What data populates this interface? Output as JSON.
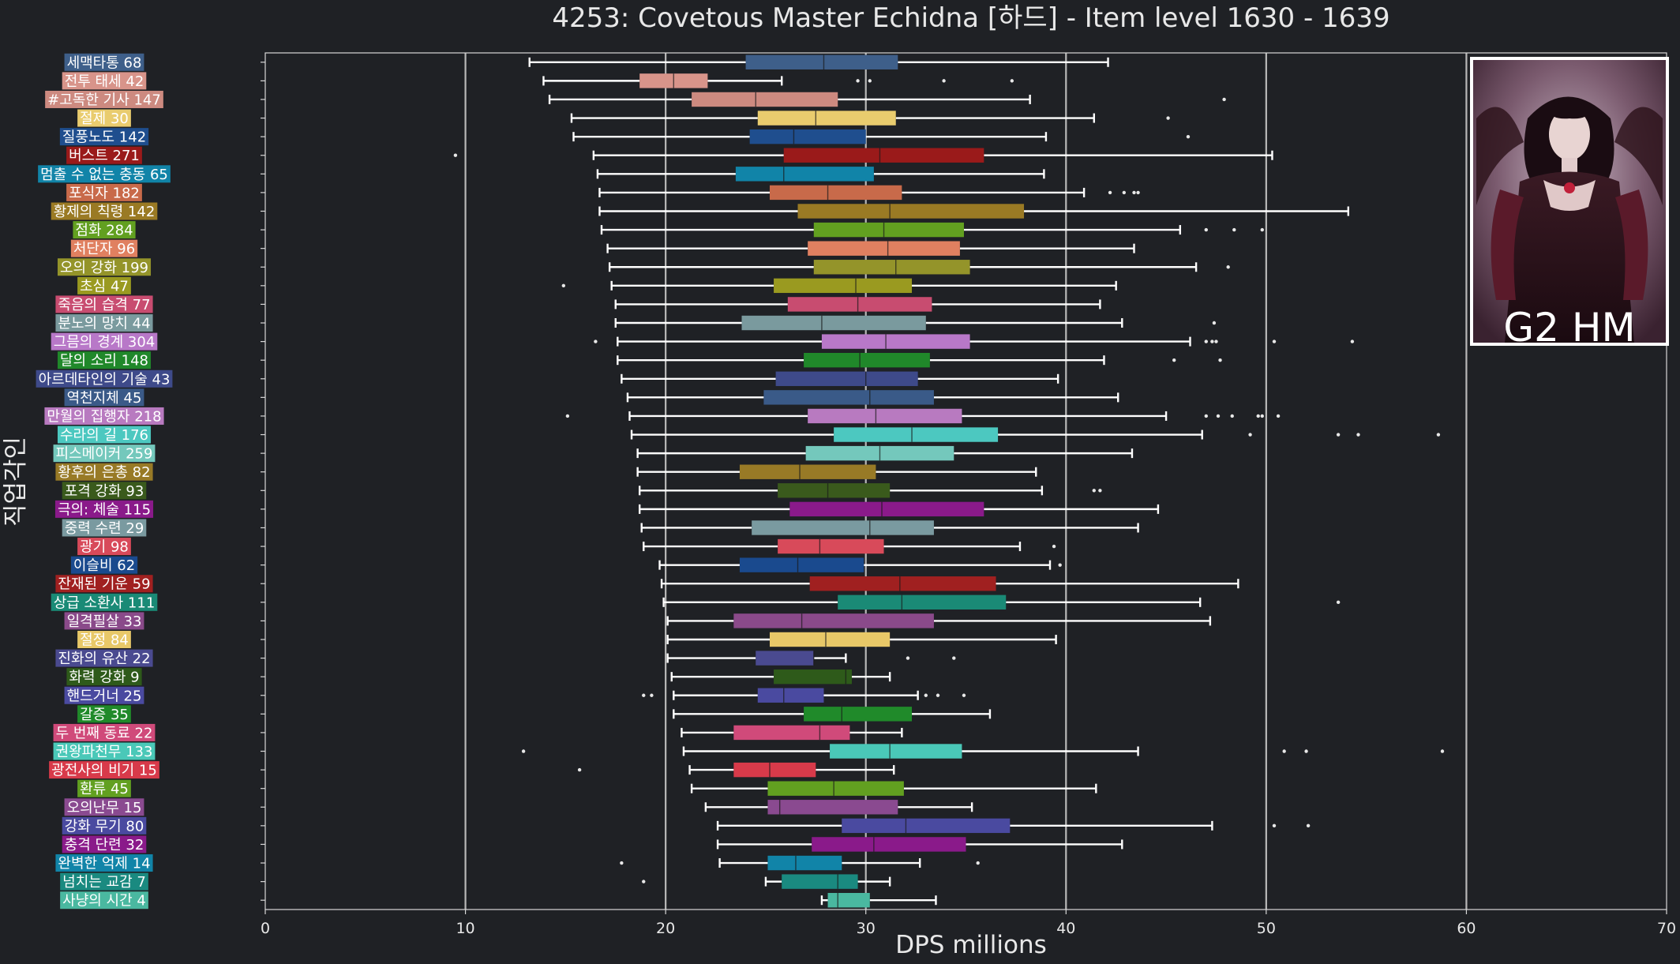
{
  "chart_data": {
    "type": "box",
    "title": "4253: Covetous Master Echidna [하드] - Item level 1630 - 1639",
    "xlabel": "DPS millions",
    "ylabel": "직업각인",
    "xlim": [
      0,
      70
    ],
    "xticks": [
      0,
      10,
      20,
      30,
      40,
      50,
      60,
      70
    ],
    "grid": "vertical",
    "badge_text": "G2 HM",
    "badge_image": "echidna-portrait",
    "categories": [
      {
        "label": "세맥타통 68",
        "color": "#3e5f8a",
        "whislo": 13.2,
        "q1": 24.0,
        "med": 27.9,
        "q3": 31.6,
        "whishi": 42.1,
        "fliers": []
      },
      {
        "label": "전투 태세 42",
        "color": "#d8948a",
        "whislo": 13.9,
        "q1": 18.7,
        "med": 20.4,
        "q3": 22.1,
        "whishi": 25.8,
        "fliers": [
          29.6,
          30.2,
          33.9,
          37.3
        ]
      },
      {
        "label": "#고독한 기사 147",
        "color": "#cd8a80",
        "whislo": 14.2,
        "q1": 21.3,
        "med": 24.5,
        "q3": 28.6,
        "whishi": 38.2,
        "fliers": [
          47.9
        ]
      },
      {
        "label": "절제 30",
        "color": "#e9cc6e",
        "whislo": 15.3,
        "q1": 24.6,
        "med": 27.5,
        "q3": 31.5,
        "whishi": 41.4,
        "fliers": [
          45.1
        ]
      },
      {
        "label": "질풍노도 142",
        "color": "#1f4e8e",
        "whislo": 15.4,
        "q1": 24.2,
        "med": 26.4,
        "q3": 30.0,
        "whishi": 39.0,
        "fliers": [
          46.1
        ]
      },
      {
        "label": "버스트 271",
        "color": "#9a1a1a",
        "whislo": 16.4,
        "q1": 25.9,
        "med": 30.7,
        "q3": 35.9,
        "whishi": 50.3,
        "fliers": [
          9.5
        ]
      },
      {
        "label": "멈출 수 없는 충동 65",
        "color": "#1184a8",
        "whislo": 16.6,
        "q1": 23.5,
        "med": 25.9,
        "q3": 30.4,
        "whishi": 38.9,
        "fliers": []
      },
      {
        "label": "포식자 182",
        "color": "#c86a4a",
        "whislo": 16.7,
        "q1": 25.2,
        "med": 28.1,
        "q3": 31.8,
        "whishi": 40.9,
        "fliers": [
          42.2,
          42.9,
          43.4,
          43.6
        ]
      },
      {
        "label": "황제의 칙령 142",
        "color": "#9a7a24",
        "whislo": 16.7,
        "q1": 26.6,
        "med": 31.2,
        "q3": 37.9,
        "whishi": 54.1,
        "fliers": []
      },
      {
        "label": "점화 284",
        "color": "#62a020",
        "whislo": 16.8,
        "q1": 27.4,
        "med": 30.9,
        "q3": 34.9,
        "whishi": 45.7,
        "fliers": [
          47.0,
          48.4,
          49.8
        ]
      },
      {
        "label": "처단자 96",
        "color": "#e08060",
        "whislo": 17.1,
        "q1": 27.1,
        "med": 31.1,
        "q3": 34.7,
        "whishi": 43.4,
        "fliers": []
      },
      {
        "label": "오의 강화 199",
        "color": "#94942a",
        "whislo": 17.2,
        "q1": 27.4,
        "med": 31.5,
        "q3": 35.2,
        "whishi": 46.5,
        "fliers": [
          48.1
        ]
      },
      {
        "label": "초심 47",
        "color": "#9a9a20",
        "whislo": 17.3,
        "q1": 25.4,
        "med": 29.5,
        "q3": 32.3,
        "whishi": 42.5,
        "fliers": [
          14.9
        ]
      },
      {
        "label": "죽음의 습격 77",
        "color": "#c84c70",
        "whislo": 17.5,
        "q1": 26.1,
        "med": 29.6,
        "q3": 33.3,
        "whishi": 41.7,
        "fliers": []
      },
      {
        "label": "분노의 망치 44",
        "color": "#7a9a9e",
        "whislo": 17.5,
        "q1": 23.8,
        "med": 27.8,
        "q3": 33.0,
        "whishi": 42.8,
        "fliers": [
          47.4
        ]
      },
      {
        "label": "그믐의 경계 304",
        "color": "#b878c8",
        "whislo": 17.6,
        "q1": 27.8,
        "med": 31.0,
        "q3": 35.2,
        "whishi": 46.2,
        "fliers": [
          16.5,
          47.0,
          47.3,
          47.5,
          50.4,
          54.3
        ]
      },
      {
        "label": "달의 소리 148",
        "color": "#20882a",
        "whislo": 17.6,
        "q1": 26.9,
        "med": 29.7,
        "q3": 33.2,
        "whishi": 41.9,
        "fliers": [
          45.4,
          47.7
        ]
      },
      {
        "label": "아르데타인의 기술 43",
        "color": "#3e4a8a",
        "whislo": 17.8,
        "q1": 25.5,
        "med": 30.0,
        "q3": 32.6,
        "whishi": 39.6,
        "fliers": []
      },
      {
        "label": "역천지체 45",
        "color": "#3a5a88",
        "whislo": 18.1,
        "q1": 24.9,
        "med": 30.2,
        "q3": 33.4,
        "whishi": 42.6,
        "fliers": []
      },
      {
        "label": "만월의 집행자 218",
        "color": "#b87ac0",
        "whislo": 18.2,
        "q1": 27.1,
        "med": 30.5,
        "q3": 34.8,
        "whishi": 45.0,
        "fliers": [
          15.1,
          47.0,
          47.6,
          48.3,
          49.6,
          49.8,
          50.6
        ]
      },
      {
        "label": "수라의 길 176",
        "color": "#4cc8c0",
        "whislo": 18.3,
        "q1": 28.4,
        "med": 32.3,
        "q3": 36.6,
        "whishi": 46.8,
        "fliers": [
          49.2,
          53.6,
          54.6,
          58.6
        ]
      },
      {
        "label": "피스메이커 259",
        "color": "#74c8bc",
        "whislo": 18.6,
        "q1": 27.0,
        "med": 30.7,
        "q3": 34.4,
        "whishi": 43.3,
        "fliers": []
      },
      {
        "label": "황후의 은총 82",
        "color": "#987a26",
        "whislo": 18.6,
        "q1": 23.7,
        "med": 26.7,
        "q3": 30.5,
        "whishi": 38.5,
        "fliers": []
      },
      {
        "label": "포격 강화 93",
        "color": "#3a5a1c",
        "whislo": 18.7,
        "q1": 25.6,
        "med": 28.1,
        "q3": 31.2,
        "whishi": 38.8,
        "fliers": [
          41.4,
          41.7
        ]
      },
      {
        "label": "극의: 체술 115",
        "color": "#8a1a8a",
        "whislo": 18.7,
        "q1": 26.2,
        "med": 30.8,
        "q3": 35.9,
        "whishi": 44.6,
        "fliers": []
      },
      {
        "label": "중력 수련 29",
        "color": "#7a9aa0",
        "whislo": 18.8,
        "q1": 24.3,
        "med": 30.2,
        "q3": 33.4,
        "whishi": 43.6,
        "fliers": []
      },
      {
        "label": "광기 98",
        "color": "#d84a5a",
        "whislo": 18.9,
        "q1": 25.6,
        "med": 27.7,
        "q3": 30.9,
        "whishi": 37.7,
        "fliers": [
          39.4
        ]
      },
      {
        "label": "이슬비 62",
        "color": "#1a4a8e",
        "whislo": 19.7,
        "q1": 23.7,
        "med": 26.6,
        "q3": 29.9,
        "whishi": 39.2,
        "fliers": [
          39.7
        ]
      },
      {
        "label": "잔재된 기운 59",
        "color": "#a02020",
        "whislo": 19.8,
        "q1": 27.2,
        "med": 31.7,
        "q3": 36.5,
        "whishi": 48.6,
        "fliers": []
      },
      {
        "label": "상급 소환사 111",
        "color": "#1a8a76",
        "whislo": 19.9,
        "q1": 28.6,
        "med": 31.8,
        "q3": 37.0,
        "whishi": 46.7,
        "fliers": [
          53.6
        ]
      },
      {
        "label": "일격필살 33",
        "color": "#8a4a8a",
        "whislo": 20.1,
        "q1": 23.4,
        "med": 26.8,
        "q3": 33.4,
        "whishi": 47.2,
        "fliers": []
      },
      {
        "label": "절정 84",
        "color": "#e8c868",
        "whislo": 20.1,
        "q1": 25.2,
        "med": 28.0,
        "q3": 31.2,
        "whishi": 39.5,
        "fliers": []
      },
      {
        "label": "진화의 유산 22",
        "color": "#4a4a90",
        "whislo": 20.1,
        "q1": 24.5,
        "med": 27.4,
        "q3": 27.4,
        "whishi": 29.0,
        "fliers": [
          32.1,
          34.4
        ]
      },
      {
        "label": "화력 강화 9",
        "color": "#2e5a1a",
        "whislo": 20.3,
        "q1": 25.4,
        "med": 29.0,
        "q3": 29.3,
        "whishi": 31.2,
        "fliers": []
      },
      {
        "label": "핸드거너 25",
        "color": "#4a4aa0",
        "whislo": 20.4,
        "q1": 24.6,
        "med": 25.9,
        "q3": 27.9,
        "whishi": 32.6,
        "fliers": [
          18.9,
          19.3,
          33.0,
          33.6,
          34.9
        ]
      },
      {
        "label": "갈증 35",
        "color": "#208a2a",
        "whislo": 20.4,
        "q1": 26.9,
        "med": 28.8,
        "q3": 32.3,
        "whishi": 36.2,
        "fliers": []
      },
      {
        "label": "두 번째 동료 22",
        "color": "#d04a7a",
        "whislo": 20.8,
        "q1": 23.4,
        "med": 27.7,
        "q3": 29.2,
        "whishi": 31.8,
        "fliers": []
      },
      {
        "label": "권왕파천무 133",
        "color": "#4ac8b8",
        "whislo": 20.9,
        "q1": 28.2,
        "med": 31.2,
        "q3": 34.8,
        "whishi": 43.6,
        "fliers": [
          12.9,
          50.9,
          52.0,
          58.8
        ]
      },
      {
        "label": "광전사의 비기 15",
        "color": "#d83a4a",
        "whislo": 21.2,
        "q1": 23.4,
        "med": 25.2,
        "q3": 27.5,
        "whishi": 31.4,
        "fliers": [
          15.7
        ]
      },
      {
        "label": "환류 45",
        "color": "#62a020",
        "whislo": 21.3,
        "q1": 25.1,
        "med": 28.4,
        "q3": 31.9,
        "whishi": 41.5,
        "fliers": []
      },
      {
        "label": "오의난무 15",
        "color": "#8a4a90",
        "whislo": 22.0,
        "q1": 25.1,
        "med": 25.7,
        "q3": 31.6,
        "whishi": 35.3,
        "fliers": []
      },
      {
        "label": "강화 무기 80",
        "color": "#4a4aa0",
        "whislo": 22.6,
        "q1": 28.8,
        "med": 32.0,
        "q3": 37.2,
        "whishi": 47.3,
        "fliers": [
          50.4,
          52.1
        ]
      },
      {
        "label": "충격 단련 32",
        "color": "#8a1a8a",
        "whislo": 22.6,
        "q1": 27.3,
        "med": 30.4,
        "q3": 35.0,
        "whishi": 42.8,
        "fliers": []
      },
      {
        "label": "완벽한 억제 14",
        "color": "#1184a8",
        "whislo": 22.7,
        "q1": 25.1,
        "med": 26.5,
        "q3": 28.8,
        "whishi": 32.7,
        "fliers": [
          17.8,
          35.6
        ]
      },
      {
        "label": "넘치는 교감 7",
        "color": "#1a8a80",
        "whislo": 25.0,
        "q1": 25.8,
        "med": 28.6,
        "q3": 29.6,
        "whishi": 31.2,
        "fliers": [
          18.9
        ]
      },
      {
        "label": "사냥의 시간 4",
        "color": "#4ab8a0",
        "whislo": 27.8,
        "q1": 28.1,
        "med": 28.6,
        "q3": 30.2,
        "whishi": 33.5,
        "fliers": []
      }
    ]
  }
}
